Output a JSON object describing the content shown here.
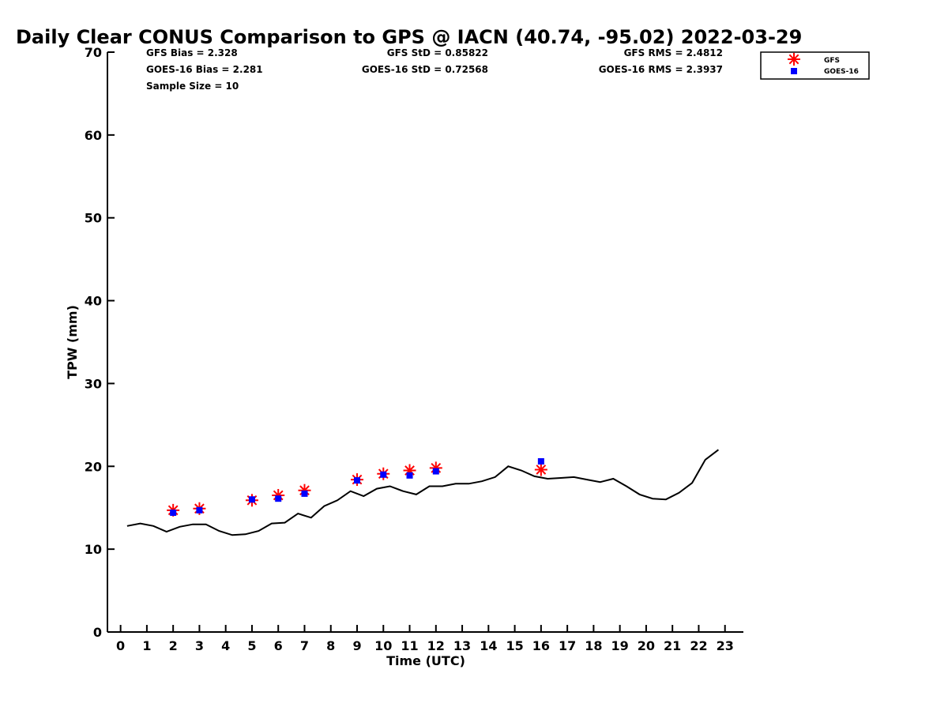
{
  "chart_data": {
    "type": "scatter",
    "title": "Daily Clear CONUS Comparison to GPS @ IACN (40.74, -95.02) 2022-03-29",
    "xlabel": "Time (UTC)",
    "ylabel": "TPW (mm)",
    "xlim": [
      -0.5,
      23.7
    ],
    "ylim": [
      0,
      70
    ],
    "xticks": [
      0,
      1,
      2,
      3,
      4,
      5,
      6,
      7,
      8,
      9,
      10,
      11,
      12,
      13,
      14,
      15,
      16,
      17,
      18,
      19,
      20,
      21,
      22,
      23
    ],
    "yticks": [
      0,
      10,
      20,
      30,
      40,
      50,
      60,
      70
    ],
    "grid": false,
    "legend_position": "top-right",
    "stats": {
      "gfs_bias": "GFS Bias = 2.328",
      "goes_bias": "GOES-16 Bias = 2.281",
      "sample_size": "Sample Size = 10",
      "gfs_std": "GFS StD = 0.85822",
      "goes_std": "GOES-16 StD = 0.72568",
      "gfs_rms": "GFS RMS = 2.4812",
      "goes_rms": "GOES-16 RMS = 2.3937"
    },
    "series": [
      {
        "name": "GPS",
        "kind": "line",
        "color": "#000000",
        "x": [
          0.25,
          0.75,
          1.25,
          1.75,
          2.25,
          2.75,
          3.25,
          3.75,
          4.25,
          4.75,
          5.25,
          5.75,
          6.25,
          6.75,
          7.25,
          7.75,
          8.25,
          8.75,
          9.25,
          9.75,
          10.25,
          10.75,
          11.25,
          11.75,
          12.25,
          12.75,
          13.25,
          13.75,
          14.25,
          14.75,
          15.25,
          15.75,
          16.25,
          16.75,
          17.25,
          17.75,
          18.25,
          18.75,
          19.25,
          19.75,
          20.25,
          20.75,
          21.25,
          21.75,
          22.25,
          22.75
        ],
        "y": [
          12.8,
          13.1,
          12.8,
          12.1,
          12.7,
          13.0,
          13.0,
          12.2,
          11.7,
          11.8,
          12.2,
          13.1,
          13.2,
          14.3,
          13.8,
          15.2,
          15.9,
          17.0,
          16.4,
          17.3,
          17.6,
          17.0,
          16.6,
          17.6,
          17.6,
          17.9,
          17.9,
          18.2,
          18.7,
          20.0,
          19.5,
          18.8,
          18.5,
          18.6,
          18.7,
          18.4,
          18.1,
          18.5,
          17.6,
          16.6,
          16.1,
          16.0,
          16.8,
          18.0,
          20.8,
          22.0
        ]
      },
      {
        "name": "GFS",
        "kind": "asterisk",
        "color": "#ff0000",
        "x": [
          2,
          3,
          5,
          6,
          7,
          9,
          10,
          11,
          12,
          16
        ],
        "y": [
          14.7,
          14.9,
          15.9,
          16.5,
          17.1,
          18.4,
          19.1,
          19.5,
          19.8,
          19.6
        ]
      },
      {
        "name": "GOES-16",
        "kind": "square",
        "color": "#0000ff",
        "x": [
          2,
          3,
          5,
          6,
          7,
          9,
          10,
          11,
          12,
          16
        ],
        "y": [
          14.4,
          14.7,
          16.0,
          16.1,
          16.7,
          18.3,
          19.0,
          18.9,
          19.4,
          20.6
        ]
      }
    ],
    "legend": [
      "GFS",
      "GOES-16"
    ]
  }
}
